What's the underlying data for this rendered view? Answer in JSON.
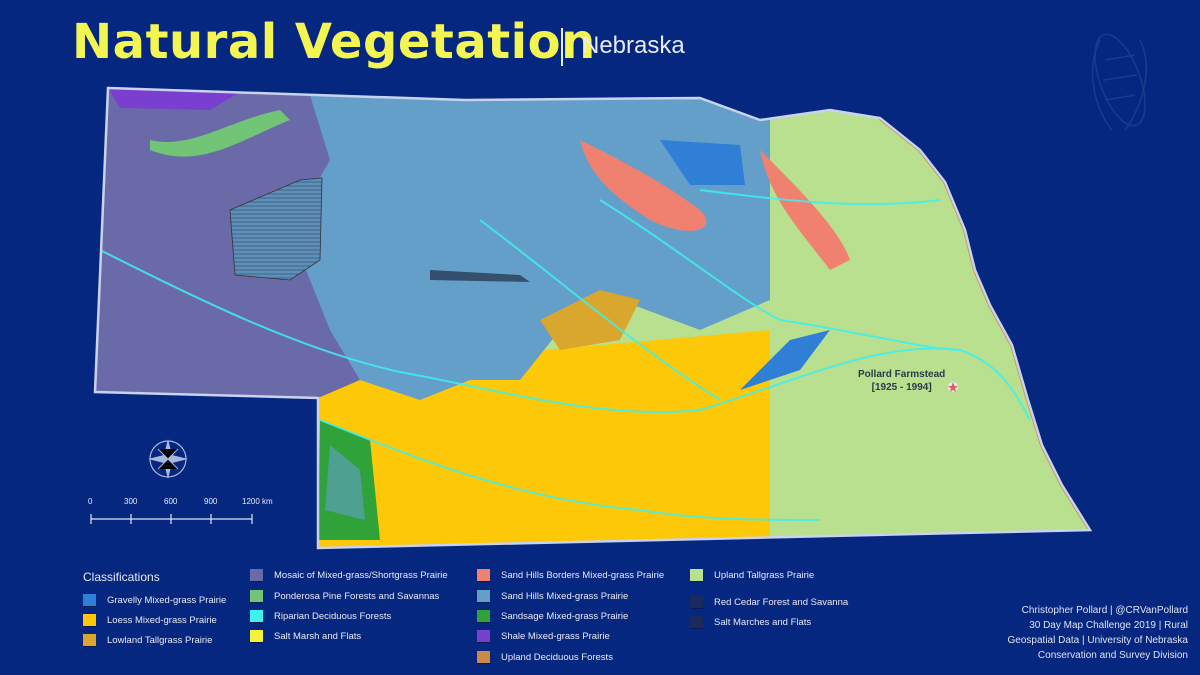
{
  "header": {
    "title": "Natural Vegetation",
    "subtitle": "Nebraska"
  },
  "map": {
    "marker": {
      "label_line1": "Pollard Farmstead",
      "label_line2": "[1925 - 1994]",
      "icon": "star-icon"
    },
    "scale_bar": {
      "ticks": [
        "0",
        "300",
        "600",
        "900",
        "1200 km"
      ]
    },
    "compass": "compass-rose-icon",
    "decoration": "corn-icon"
  },
  "legend": {
    "title": "Classifications",
    "items": [
      {
        "label": "Gravelly Mixed-grass Prairie",
        "color": "#2f7fd6"
      },
      {
        "label": "Loess Mixed-grass Prairie",
        "color": "#fcc808"
      },
      {
        "label": "Lowland Tallgrass Prairie",
        "color": "#d9a72e"
      },
      {
        "label": "Mosaic of Mixed-grass/Shortgrass Prairie",
        "color": "#6b6aa8"
      },
      {
        "label": "Ponderosa Pine Forests and Savannas",
        "color": "#72c476"
      },
      {
        "label": "Riparian Deciduous Forests",
        "color": "#3ef0ee"
      },
      {
        "label": "Salt Marsh and Flats",
        "color": "#f4f23c"
      },
      {
        "label": "Sand Hills Borders Mixed-grass Prairie",
        "color": "#f08070"
      },
      {
        "label": "Sand Hills Mixed-grass Prairie",
        "color": "#649fc9"
      },
      {
        "label": "Sandsage Mixed-grass Prairie",
        "color": "#2fa33a"
      },
      {
        "label": "Shale Mixed-grass Prairie",
        "color": "#7a3fcf"
      },
      {
        "label": "Upland Deciduous Forests",
        "color": "#c98a4a"
      },
      {
        "label": "Upland Tallgrass Prairie",
        "color": "#b8e08e"
      },
      {
        "label": "Red Cedar Forest and Savanna",
        "color": "#1b2a5e"
      },
      {
        "label": "Salt Marches and Flats",
        "color": "#1b2a5e"
      }
    ]
  },
  "credits": [
    "Christopher Pollard  | @CRVanPollard",
    "30 Day Map Challenge 2019 |  Rural",
    "Geospatial Data  | University of Nebraska",
    "Conservation and Survey Division"
  ]
}
